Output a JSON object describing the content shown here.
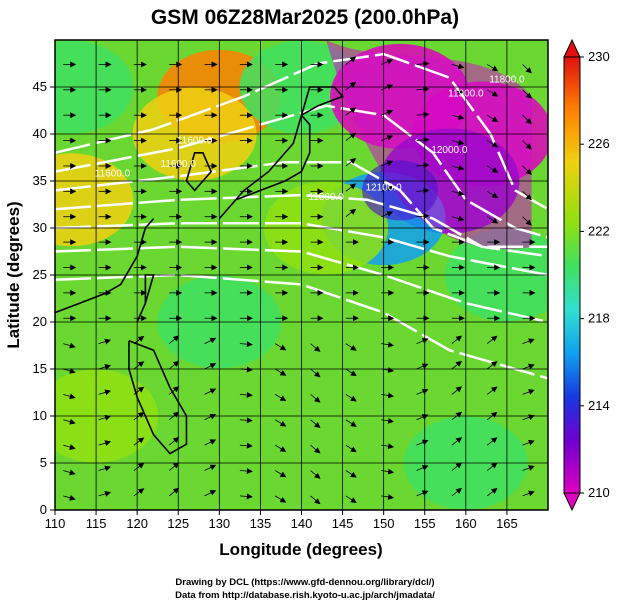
{
  "chart_data": {
    "type": "heatmap",
    "title": "GSM 06Z28Mar2025 (200.0hPa)",
    "xlabel": "Longitude (degrees)",
    "ylabel": "Latitude (degrees)",
    "xlim": [
      110,
      170
    ],
    "ylim": [
      0,
      50
    ],
    "x_ticks": [
      "110",
      "115",
      "120",
      "125",
      "130",
      "135",
      "140",
      "145",
      "150",
      "155",
      "160",
      "165"
    ],
    "y_ticks": [
      "0",
      "5",
      "10",
      "15",
      "20",
      "25",
      "30",
      "35",
      "40",
      "45"
    ],
    "colorbar": {
      "range": [
        210,
        230
      ],
      "ticks": [
        "210",
        "214",
        "218",
        "222",
        "226",
        "230"
      ],
      "colors": [
        "#e000c0",
        "#6000d0",
        "#1838e0",
        "#10a0f0",
        "#30e0d0",
        "#40e060",
        "#90e010",
        "#f0d010",
        "#ff8000",
        "#e01010"
      ]
    },
    "contour_labels": [
      "11600.0",
      "11600.0",
      "11600.0",
      "11800.0",
      "12000.0",
      "11900.0",
      "12100.0",
      "11800.0"
    ],
    "temperature_field": [
      {
        "lon": 112,
        "lat": 45,
        "value": 221.5
      },
      {
        "lon": 130,
        "lat": 44,
        "value": 227
      },
      {
        "lon": 127,
        "lat": 40,
        "value": 226
      },
      {
        "lon": 140,
        "lat": 45,
        "value": 221
      },
      {
        "lon": 152,
        "lat": 44,
        "value": 210
      },
      {
        "lon": 162,
        "lat": 40,
        "value": 210.5
      },
      {
        "lon": 158,
        "lat": 35,
        "value": 212
      },
      {
        "lon": 150,
        "lat": 31,
        "value": 217
      },
      {
        "lon": 143,
        "lat": 30,
        "value": 224
      },
      {
        "lon": 112,
        "lat": 33,
        "value": 226
      },
      {
        "lon": 165,
        "lat": 25,
        "value": 220
      },
      {
        "lon": 130,
        "lat": 20,
        "value": 222
      },
      {
        "lon": 115,
        "lat": 10,
        "value": 222.5
      },
      {
        "lon": 160,
        "lat": 5,
        "value": 222
      }
    ],
    "credits": [
      "Drawing by DCL (https://www.gfd-dennou.org/library/dcl/)",
      "Data from http://database.rish.kyoto-u.ac.jp/arch/jmadata/"
    ]
  }
}
